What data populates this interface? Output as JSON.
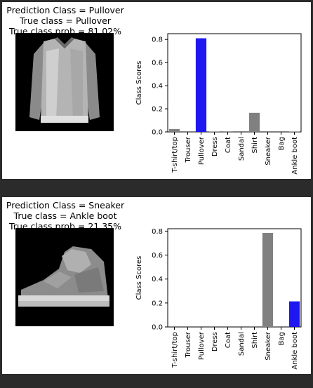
{
  "chart_data": [
    {
      "type": "bar",
      "title": "Prediction Class = Pullover",
      "subtitle_lines": [
        "True class = Pullover",
        "True class prob = 81.02%"
      ],
      "xlabel": "",
      "ylabel": "Class Scores",
      "ylim": [
        0,
        0.85
      ],
      "yticks": [
        "0.0",
        "0.2",
        "0.4",
        "0.6",
        "0.8"
      ],
      "categories": [
        "T-shirt/top",
        "Trouser",
        "Pullover",
        "Dress",
        "Coat",
        "Sandal",
        "Shirt",
        "Sneaker",
        "Bag",
        "Ankle boot"
      ],
      "values": [
        0.025,
        0.0,
        0.8102,
        0.002,
        0.005,
        0.0,
        0.165,
        0.0,
        0.0,
        0.002
      ],
      "highlight_index": 2,
      "grid": false,
      "legend": "none",
      "colors": {
        "highlight": "#1f17ef",
        "other": "#808080"
      }
    },
    {
      "type": "bar",
      "title": "Prediction Class = Sneaker",
      "subtitle_lines": [
        "True class = Ankle boot",
        "True class prob = 21.35%"
      ],
      "xlabel": "",
      "ylabel": "Class Scores",
      "ylim": [
        0,
        0.82
      ],
      "yticks": [
        "0.0",
        "0.2",
        "0.4",
        "0.6",
        "0.8"
      ],
      "categories": [
        "T-shirt/top",
        "Trouser",
        "Pullover",
        "Dress",
        "Coat",
        "Sandal",
        "Shirt",
        "Sneaker",
        "Bag",
        "Ankle boot"
      ],
      "values": [
        0.0,
        0.0,
        0.0,
        0.0,
        0.0,
        0.0,
        0.0,
        0.785,
        0.0,
        0.2135
      ],
      "highlight_index": 9,
      "grid": false,
      "legend": "none",
      "colors": {
        "highlight": "#1f17ef",
        "other": "#808080"
      }
    }
  ],
  "images": [
    {
      "icon": "pullover-thumbnail"
    },
    {
      "icon": "sneaker-thumbnail"
    }
  ],
  "colors": {
    "window_bg": "#2b2b2b",
    "panel_bg": "#ffffff",
    "thumb_bg": "#000000"
  }
}
